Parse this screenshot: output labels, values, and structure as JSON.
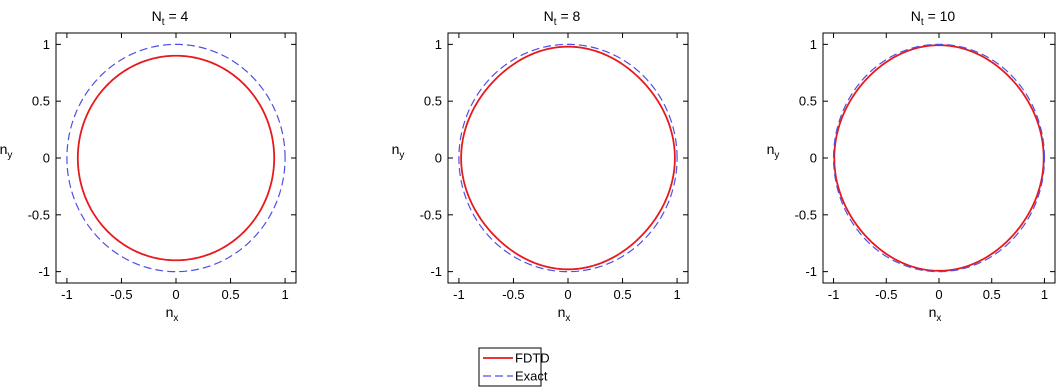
{
  "colors": {
    "fdtd": "#e8191d",
    "exact": "#4f4fe6"
  },
  "legend": {
    "entries": [
      {
        "label": "FDTD",
        "series": "FDTD"
      },
      {
        "label": "Exact",
        "series": "Exact"
      }
    ]
  },
  "chart_data": [
    {
      "type": "line",
      "title": {
        "main": "N",
        "sub": "t",
        "rest": " = 4"
      },
      "xlabel": {
        "main": "n",
        "sub": "x"
      },
      "ylabel": {
        "main": "n",
        "sub": "y"
      },
      "xlim": [
        -1.1,
        1.1
      ],
      "ylim": [
        -1.1,
        1.1
      ],
      "xticks": [
        -1,
        -0.5,
        0,
        0.5,
        1
      ],
      "yticks": [
        -1,
        -0.5,
        0,
        0.5,
        1
      ],
      "xtick_labels": [
        "-1",
        "-0.5",
        "0",
        "0.5",
        "1"
      ],
      "ytick_labels": [
        "-1",
        "-0.5",
        "0",
        "0.5",
        "1"
      ],
      "grid": false,
      "series": [
        {
          "name": "FDTD",
          "style": "solid",
          "radius": 0.9,
          "anisotropy": 0.0
        },
        {
          "name": "Exact",
          "style": "dashed",
          "radius": 1.0,
          "anisotropy": 0.0
        }
      ]
    },
    {
      "type": "line",
      "title": {
        "main": "N",
        "sub": "t",
        "rest": " = 8"
      },
      "xlabel": {
        "main": "n",
        "sub": "x"
      },
      "ylabel": {
        "main": "n",
        "sub": "y"
      },
      "xlim": [
        -1.1,
        1.1
      ],
      "ylim": [
        -1.1,
        1.1
      ],
      "xticks": [
        -1,
        -0.5,
        0,
        0.5,
        1
      ],
      "yticks": [
        -1,
        -0.5,
        0,
        0.5,
        1
      ],
      "xtick_labels": [
        "-1",
        "-0.5",
        "0",
        "0.5",
        "1"
      ],
      "ytick_labels": [
        "-1",
        "-0.5",
        "0",
        "0.5",
        "1"
      ],
      "grid": false,
      "series": [
        {
          "name": "FDTD",
          "style": "solid",
          "radius": 0.97,
          "anisotropy": 0.01
        },
        {
          "name": "Exact",
          "style": "dashed",
          "radius": 1.0,
          "anisotropy": 0.0
        }
      ]
    },
    {
      "type": "line",
      "title": {
        "main": "N",
        "sub": "t",
        "rest": " = 10"
      },
      "xlabel": {
        "main": "n",
        "sub": "x"
      },
      "ylabel": {
        "main": "n",
        "sub": "y"
      },
      "xlim": [
        -1.1,
        1.1
      ],
      "ylim": [
        -1.1,
        1.1
      ],
      "xticks": [
        -1,
        -0.5,
        0,
        0.5,
        1
      ],
      "yticks": [
        -1,
        -0.5,
        0,
        0.5,
        1
      ],
      "xtick_labels": [
        "-1",
        "-0.5",
        "0",
        "0.5",
        "1"
      ],
      "ytick_labels": [
        "-1",
        "-0.5",
        "0",
        "0.5",
        "1"
      ],
      "grid": false,
      "series": [
        {
          "name": "FDTD",
          "style": "solid",
          "radius": 0.985,
          "anisotropy": 0.008
        },
        {
          "name": "Exact",
          "style": "dashed",
          "radius": 1.0,
          "anisotropy": 0.0
        }
      ]
    }
  ]
}
